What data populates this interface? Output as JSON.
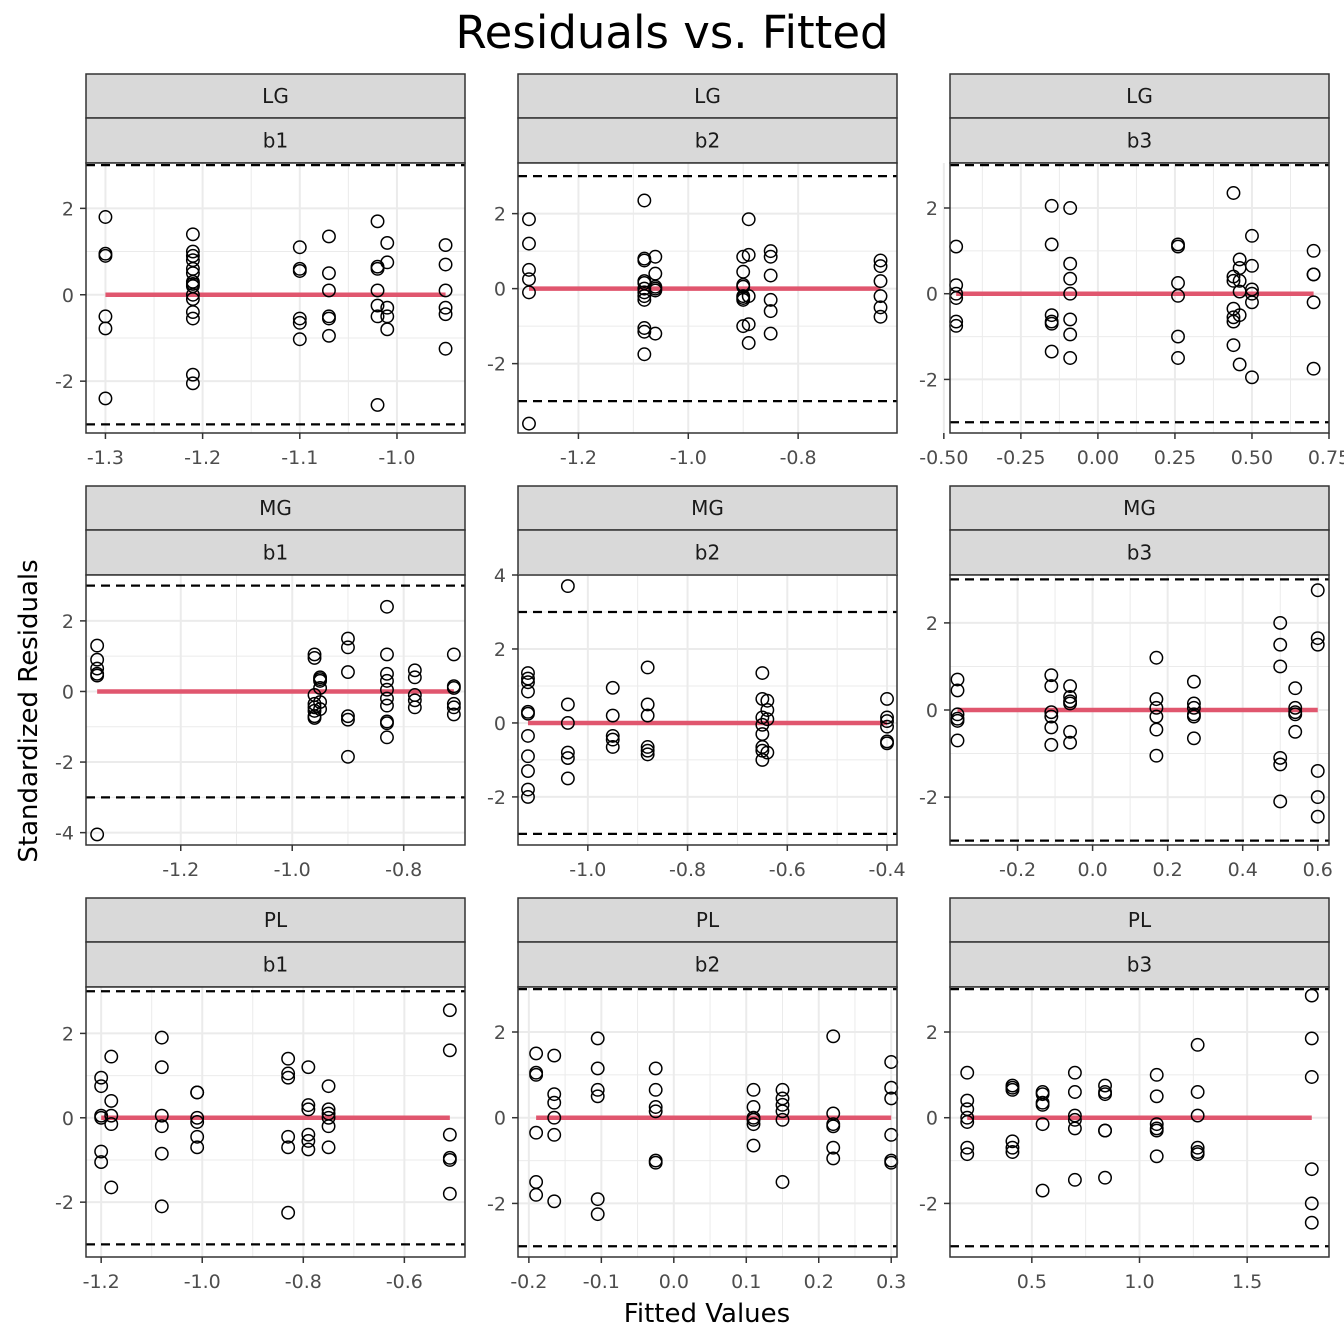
{
  "title": "Residuals vs. Fitted",
  "xlabel": "Fitted Values",
  "ylabel": "Standardized Residuals",
  "colors": {
    "fit_line": "#E0566E",
    "strip_bg": "#D9D9D9",
    "grid": "#EBEBEB",
    "reference": "#000000"
  },
  "chart_data": [
    {
      "type": "scatter",
      "row_label": "LG",
      "col_label": "b1",
      "xlim": [
        -1.32,
        -0.93
      ],
      "ylim": [
        -3.2,
        3.05
      ],
      "xticks": [
        -1.3,
        -1.2,
        -1.1,
        -1.0
      ],
      "xtick_labels": [
        "-1.3",
        "-1.2",
        "-1.1",
        "-1.0"
      ],
      "yticks": [
        -2,
        0,
        2
      ],
      "ytick_labels": [
        "-2",
        "0",
        "2"
      ],
      "ref_lines": [
        3,
        -3
      ],
      "fit_line": {
        "x": [
          -1.3,
          -0.95
        ],
        "y": [
          0,
          0
        ]
      },
      "x": [
        -1.3,
        -1.3,
        -1.3,
        -1.3,
        -1.3,
        -1.3,
        -1.21,
        -1.21,
        -1.21,
        -1.21,
        -1.21,
        -1.21,
        -1.21,
        -1.21,
        -1.21,
        -1.21,
        -1.21,
        -1.21,
        -1.21,
        -1.21,
        -1.21,
        -1.1,
        -1.1,
        -1.1,
        -1.1,
        -1.1,
        -1.1,
        -1.07,
        -1.07,
        -1.07,
        -1.07,
        -1.07,
        -1.07,
        -1.02,
        -1.02,
        -1.02,
        -1.02,
        -1.02,
        -1.02,
        -1.02,
        -1.01,
        -1.01,
        -1.01,
        -1.01,
        -1.01,
        -0.95,
        -0.95,
        -0.95,
        -0.95,
        -0.95,
        -0.95
      ],
      "y": [
        1.8,
        0.95,
        0.9,
        -0.5,
        -0.78,
        -2.4,
        1.4,
        1.0,
        0.9,
        0.6,
        0.5,
        0.25,
        0.2,
        0.0,
        -0.1,
        -0.4,
        -0.55,
        -1.85,
        -2.05,
        0.8,
        0.3,
        1.1,
        0.6,
        0.55,
        -0.55,
        -0.65,
        -1.03,
        1.35,
        0.5,
        0.1,
        -0.5,
        -0.55,
        -0.95,
        1.7,
        0.65,
        0.6,
        0.1,
        -0.5,
        -0.25,
        -2.55,
        1.2,
        0.75,
        -0.3,
        -0.5,
        -0.8,
        1.15,
        0.7,
        0.1,
        -0.3,
        -0.45,
        -1.25
      ]
    },
    {
      "type": "scatter",
      "row_label": "LG",
      "col_label": "b2",
      "xlim": [
        -1.31,
        -0.62
      ],
      "ylim": [
        -3.85,
        3.35
      ],
      "xticks": [
        -1.2,
        -1.0,
        -0.8
      ],
      "xtick_labels": [
        "-1.2",
        "-1.0",
        "-0.8"
      ],
      "yticks": [
        -2,
        0,
        2
      ],
      "ytick_labels": [
        "-2",
        "0",
        "2"
      ],
      "ref_lines": [
        3,
        -3
      ],
      "fit_line": {
        "x": [
          -1.29,
          -0.65
        ],
        "y": [
          0,
          0
        ]
      },
      "x": [
        -1.29,
        -1.29,
        -1.29,
        -1.29,
        -1.29,
        -1.29,
        -1.08,
        -1.08,
        -1.08,
        -1.08,
        -1.08,
        -1.08,
        -1.08,
        -1.08,
        -1.08,
        -1.08,
        -1.08,
        -1.08,
        -1.06,
        -1.06,
        -1.06,
        -1.06,
        -1.06,
        -1.06,
        -0.9,
        -0.9,
        -0.9,
        -0.9,
        -0.9,
        -0.9,
        -0.9,
        -0.9,
        -0.89,
        -0.89,
        -0.89,
        -0.89,
        -0.89,
        -0.85,
        -0.85,
        -0.85,
        -0.85,
        -0.85,
        -0.85,
        -0.65,
        -0.65,
        -0.65,
        -0.65,
        -0.65,
        -0.65
      ],
      "y": [
        1.85,
        1.2,
        0.5,
        0.25,
        -0.1,
        -3.6,
        2.35,
        0.8,
        0.75,
        0.2,
        0.15,
        0.0,
        -0.1,
        -0.2,
        -0.3,
        -1.05,
        -1.15,
        -1.75,
        0.85,
        0.4,
        0.05,
        0.0,
        -0.05,
        -1.2,
        0.85,
        0.45,
        0.1,
        -0.2,
        -0.25,
        -0.3,
        -1.0,
        0.05,
        1.85,
        0.9,
        -0.2,
        -0.95,
        -1.45,
        1.0,
        0.85,
        0.35,
        -0.3,
        -0.6,
        -1.2,
        0.75,
        0.6,
        0.2,
        -0.2,
        -0.5,
        -0.75
      ]
    },
    {
      "type": "scatter",
      "row_label": "LG",
      "col_label": "b3",
      "xlim": [
        -0.48,
        0.75
      ],
      "ylim": [
        -3.25,
        3.05
      ],
      "xticks": [
        -0.5,
        -0.25,
        0.0,
        0.25,
        0.5,
        0.75
      ],
      "xtick_labels": [
        "-0.50",
        "-0.25",
        "0.00",
        "0.25",
        "0.50",
        "0.75"
      ],
      "yticks": [
        -2,
        0,
        2
      ],
      "ytick_labels": [
        "-2",
        "0",
        "2"
      ],
      "ref_lines": [
        3,
        -3
      ],
      "fit_line": {
        "x": [
          -0.46,
          0.7
        ],
        "y": [
          0,
          0
        ]
      },
      "x": [
        -0.46,
        -0.46,
        -0.46,
        -0.46,
        -0.46,
        -0.46,
        -0.15,
        -0.15,
        -0.15,
        -0.15,
        -0.15,
        -0.15,
        -0.09,
        -0.09,
        -0.09,
        -0.09,
        -0.09,
        -0.09,
        -0.09,
        0.26,
        0.26,
        0.26,
        0.26,
        0.26,
        0.26,
        0.44,
        0.44,
        0.44,
        0.44,
        0.44,
        0.44,
        0.44,
        0.46,
        0.46,
        0.46,
        0.46,
        0.46,
        0.46,
        0.5,
        0.5,
        0.5,
        0.5,
        0.5,
        0.5,
        0.7,
        0.7,
        0.7,
        0.7,
        0.7
      ],
      "y": [
        1.1,
        0.2,
        0.0,
        -0.1,
        -0.65,
        -0.75,
        2.05,
        1.15,
        -0.5,
        -0.65,
        -0.7,
        -1.35,
        2.0,
        0.7,
        0.35,
        -0.6,
        -0.95,
        -1.5,
        0.0,
        1.15,
        1.1,
        0.25,
        -0.05,
        -1.0,
        -1.5,
        2.35,
        0.4,
        0.3,
        -0.35,
        -0.65,
        -0.55,
        -1.2,
        0.8,
        0.6,
        0.3,
        -0.5,
        -1.65,
        0.05,
        1.35,
        0.65,
        0.1,
        0.0,
        -0.2,
        -1.95,
        1.0,
        0.45,
        0.45,
        -0.2,
        -1.75
      ]
    },
    {
      "type": "scatter",
      "row_label": "MG",
      "col_label": "b1",
      "xlim": [
        -1.37,
        -0.69
      ],
      "ylim": [
        -4.35,
        3.3
      ],
      "xticks": [
        -1.2,
        -1.0,
        -0.8
      ],
      "xtick_labels": [
        "-1.2",
        "-1.0",
        "-0.8"
      ],
      "yticks": [
        -4,
        -2,
        0,
        2
      ],
      "ytick_labels": [
        "-4",
        "-2",
        "0",
        "2"
      ],
      "ref_lines": [
        3,
        -3
      ],
      "fit_line": {
        "x": [
          -1.35,
          -0.71
        ],
        "y": [
          0,
          0
        ]
      },
      "x": [
        -1.35,
        -1.35,
        -1.35,
        -1.35,
        -1.35,
        -1.35,
        -0.96,
        -0.96,
        -0.96,
        -0.96,
        -0.96,
        -0.96,
        -0.96,
        -0.96,
        -0.95,
        -0.95,
        -0.95,
        -0.95,
        -0.95,
        -0.95,
        -0.9,
        -0.9,
        -0.9,
        -0.9,
        -0.9,
        -0.9,
        -0.83,
        -0.83,
        -0.83,
        -0.83,
        -0.83,
        -0.83,
        -0.83,
        -0.83,
        -0.83,
        -0.83,
        -0.78,
        -0.78,
        -0.78,
        -0.78,
        -0.78,
        -0.71,
        -0.71,
        -0.71,
        -0.71,
        -0.71,
        -0.71
      ],
      "y": [
        1.3,
        0.9,
        0.65,
        0.5,
        0.45,
        -4.05,
        1.05,
        0.95,
        -0.1,
        -0.35,
        -0.45,
        -0.55,
        -0.7,
        -0.75,
        0.4,
        0.35,
        0.3,
        0.1,
        -0.3,
        -0.5,
        1.5,
        1.25,
        0.55,
        -0.7,
        -0.8,
        -1.85,
        2.4,
        1.05,
        0.5,
        0.3,
        0.05,
        -0.2,
        -0.4,
        -0.85,
        -0.9,
        -1.3,
        0.6,
        0.4,
        -0.1,
        -0.25,
        -0.45,
        1.05,
        0.15,
        0.1,
        -0.35,
        -0.45,
        -0.65
      ]
    },
    {
      "type": "scatter",
      "row_label": "MG",
      "col_label": "b2",
      "xlim": [
        -1.14,
        -0.38
      ],
      "ylim": [
        -3.3,
        4.0
      ],
      "xticks": [
        -1.0,
        -0.8,
        -0.6,
        -0.4
      ],
      "xtick_labels": [
        "-1.0",
        "-0.8",
        "-0.6",
        "-0.4"
      ],
      "yticks": [
        -2,
        0,
        2,
        4
      ],
      "ytick_labels": [
        "-2",
        "0",
        "2",
        "4"
      ],
      "ref_lines": [
        3,
        -3
      ],
      "fit_line": {
        "x": [
          -1.12,
          -0.4
        ],
        "y": [
          0,
          0
        ]
      },
      "x": [
        -1.12,
        -1.12,
        -1.12,
        -1.12,
        -1.12,
        -1.12,
        -1.12,
        -1.12,
        -1.12,
        -1.12,
        -1.12,
        -1.04,
        -1.04,
        -1.04,
        -1.04,
        -1.04,
        -1.04,
        -0.95,
        -0.95,
        -0.95,
        -0.95,
        -0.95,
        -0.88,
        -0.88,
        -0.88,
        -0.88,
        -0.88,
        -0.88,
        -0.65,
        -0.65,
        -0.65,
        -0.65,
        -0.65,
        -0.65,
        -0.65,
        -0.65,
        -0.64,
        -0.64,
        -0.64,
        -0.64,
        -0.4,
        -0.4,
        -0.4,
        -0.4,
        -0.4,
        -0.4
      ],
      "y": [
        1.35,
        1.2,
        1.1,
        0.85,
        0.3,
        0.25,
        -0.35,
        -0.9,
        -1.3,
        -1.8,
        -2.0,
        3.7,
        0.5,
        -0.8,
        -0.95,
        -1.5,
        0.0,
        0.95,
        0.2,
        -0.35,
        -0.45,
        -0.65,
        1.5,
        0.5,
        0.2,
        -0.65,
        -0.75,
        -0.85,
        1.35,
        0.65,
        0.15,
        -0.05,
        -0.3,
        -0.65,
        -0.75,
        -1.0,
        0.6,
        0.35,
        0.1,
        -0.8,
        0.65,
        0.15,
        0.05,
        -0.1,
        -0.5,
        -0.55
      ]
    },
    {
      "type": "scatter",
      "row_label": "MG",
      "col_label": "b3",
      "xlim": [
        -0.38,
        0.63
      ],
      "ylim": [
        -3.1,
        3.1
      ],
      "xticks": [
        -0.2,
        0.0,
        0.2,
        0.4,
        0.6
      ],
      "xtick_labels": [
        "-0.2",
        "0.0",
        "0.2",
        "0.4",
        "0.6"
      ],
      "yticks": [
        -2,
        0,
        2
      ],
      "ytick_labels": [
        "-2",
        "0",
        "2"
      ],
      "ref_lines": [
        3,
        -3
      ],
      "fit_line": {
        "x": [
          -0.36,
          0.6
        ],
        "y": [
          0,
          0
        ]
      },
      "x": [
        -0.36,
        -0.36,
        -0.36,
        -0.36,
        -0.36,
        -0.36,
        -0.11,
        -0.11,
        -0.11,
        -0.11,
        -0.11,
        -0.11,
        -0.06,
        -0.06,
        -0.06,
        -0.06,
        -0.06,
        -0.06,
        0.17,
        0.17,
        0.17,
        0.17,
        0.17,
        0.17,
        0.27,
        0.27,
        0.27,
        0.27,
        0.27,
        0.27,
        0.5,
        0.5,
        0.5,
        0.5,
        0.5,
        0.5,
        0.54,
        0.54,
        0.54,
        0.54,
        0.54,
        0.6,
        0.6,
        0.6,
        0.6,
        0.6,
        0.6
      ],
      "y": [
        0.7,
        0.45,
        -0.1,
        -0.2,
        -0.25,
        -0.7,
        0.8,
        0.55,
        -0.05,
        -0.15,
        -0.4,
        -0.8,
        0.55,
        0.3,
        0.2,
        0.15,
        -0.5,
        -0.75,
        1.2,
        0.25,
        0.05,
        -0.15,
        -0.45,
        -1.05,
        0.65,
        0.15,
        0.05,
        -0.1,
        -0.15,
        -0.65,
        2.0,
        1.5,
        1.0,
        -1.1,
        -1.25,
        -2.1,
        0.5,
        0.05,
        -0.05,
        -0.1,
        -0.5,
        2.75,
        1.65,
        1.5,
        -1.4,
        -2.0,
        -2.45
      ]
    },
    {
      "type": "scatter",
      "row_label": "PL",
      "col_label": "b1",
      "xlim": [
        -1.23,
        -0.48
      ],
      "ylim": [
        -3.3,
        3.1
      ],
      "xticks": [
        -1.2,
        -1.0,
        -0.8,
        -0.6
      ],
      "xtick_labels": [
        "-1.2",
        "-1.0",
        "-0.8",
        "-0.6"
      ],
      "yticks": [
        -2,
        0,
        2
      ],
      "ytick_labels": [
        "-2",
        "0",
        "2"
      ],
      "ref_lines": [
        3,
        -3
      ],
      "fit_line": {
        "x": [
          -1.2,
          -0.51
        ],
        "y": [
          0,
          0
        ]
      },
      "x": [
        -1.2,
        -1.2,
        -1.2,
        -1.2,
        -1.2,
        -1.2,
        -1.18,
        -1.18,
        -1.18,
        -1.18,
        -1.18,
        -1.08,
        -1.08,
        -1.08,
        -1.08,
        -1.08,
        -1.08,
        -1.01,
        -1.01,
        -1.01,
        -1.01,
        -1.01,
        -1.01,
        -0.83,
        -0.83,
        -0.83,
        -0.83,
        -0.83,
        -0.83,
        -0.79,
        -0.79,
        -0.79,
        -0.79,
        -0.79,
        -0.79,
        -0.75,
        -0.75,
        -0.75,
        -0.75,
        -0.75,
        -0.75,
        -0.51,
        -0.51,
        -0.51,
        -0.51,
        -0.51,
        -0.51
      ],
      "y": [
        0.95,
        0.75,
        0.05,
        0.0,
        -0.8,
        -1.05,
        1.45,
        0.4,
        0.05,
        -0.15,
        -1.65,
        1.9,
        1.2,
        0.05,
        -0.2,
        -0.85,
        -2.1,
        0.6,
        0.6,
        0.0,
        -0.1,
        -0.45,
        -0.7,
        1.4,
        1.05,
        0.95,
        -0.45,
        -0.7,
        -2.25,
        1.2,
        0.3,
        0.2,
        -0.4,
        -0.55,
        -0.75,
        0.75,
        0.2,
        0.1,
        0.0,
        -0.2,
        -0.7,
        2.55,
        1.6,
        -0.4,
        -0.95,
        -1.0,
        -1.8
      ]
    },
    {
      "type": "scatter",
      "row_label": "PL",
      "col_label": "b2",
      "xlim": [
        -0.215,
        0.308
      ],
      "ylim": [
        -3.25,
        3.05
      ],
      "xticks": [
        -0.2,
        -0.1,
        0.0,
        0.1,
        0.2,
        0.3
      ],
      "xtick_labels": [
        "-0.2",
        "-0.1",
        "0.0",
        "0.1",
        "0.2",
        "0.3"
      ],
      "yticks": [
        -2,
        0,
        2
      ],
      "ytick_labels": [
        "-2",
        "0",
        "2"
      ],
      "ref_lines": [
        3,
        -3
      ],
      "fit_line": {
        "x": [
          -0.19,
          0.3
        ],
        "y": [
          0,
          0
        ]
      },
      "x": [
        -0.19,
        -0.19,
        -0.19,
        -0.19,
        -0.19,
        -0.19,
        -0.165,
        -0.165,
        -0.165,
        -0.165,
        -0.165,
        -0.165,
        -0.105,
        -0.105,
        -0.105,
        -0.105,
        -0.105,
        -0.105,
        -0.025,
        -0.025,
        -0.025,
        -0.025,
        -0.025,
        -0.025,
        0.11,
        0.11,
        0.11,
        0.11,
        0.11,
        0.11,
        0.15,
        0.15,
        0.15,
        0.15,
        0.15,
        0.15,
        0.22,
        0.22,
        0.22,
        0.22,
        0.22,
        0.22,
        0.3,
        0.3,
        0.3,
        0.3,
        0.3,
        0.3
      ],
      "y": [
        1.5,
        1.05,
        1.0,
        -0.35,
        -1.5,
        -1.8,
        1.45,
        0.55,
        0.35,
        -0.4,
        -1.95,
        0.0,
        1.85,
        1.15,
        0.65,
        0.5,
        -1.9,
        -2.25,
        1.15,
        0.65,
        0.25,
        0.15,
        -1.0,
        -1.05,
        0.65,
        0.25,
        -0.05,
        -0.15,
        -0.65,
        0.0,
        0.65,
        0.45,
        0.3,
        0.15,
        -0.05,
        -1.5,
        1.9,
        0.1,
        -0.15,
        -0.2,
        -0.7,
        -0.95,
        1.3,
        0.7,
        0.45,
        -0.4,
        -1.0,
        -1.05
      ]
    },
    {
      "type": "scatter",
      "row_label": "PL",
      "col_label": "b3",
      "xlim": [
        0.12,
        1.88
      ],
      "ylim": [
        -3.25,
        3.05
      ],
      "xticks": [
        0.5,
        1.0,
        1.5
      ],
      "xtick_labels": [
        "0.5",
        "1.0",
        "1.5"
      ],
      "yticks": [
        -2,
        0,
        2
      ],
      "ytick_labels": [
        "-2",
        "0",
        "2"
      ],
      "ref_lines": [
        3,
        -3
      ],
      "fit_line": {
        "x": [
          0.2,
          1.8
        ],
        "y": [
          0,
          0
        ]
      },
      "x": [
        0.2,
        0.2,
        0.2,
        0.2,
        0.2,
        0.2,
        0.2,
        0.41,
        0.41,
        0.41,
        0.41,
        0.41,
        0.41,
        0.55,
        0.55,
        0.55,
        0.55,
        0.55,
        0.55,
        0.7,
        0.7,
        0.7,
        0.7,
        0.7,
        0.7,
        0.84,
        0.84,
        0.84,
        0.84,
        0.84,
        0.84,
        1.08,
        1.08,
        1.08,
        1.08,
        1.08,
        1.08,
        1.27,
        1.27,
        1.27,
        1.27,
        1.27,
        1.27,
        1.8,
        1.8,
        1.8,
        1.8,
        1.8,
        1.8
      ],
      "y": [
        1.05,
        0.4,
        0.2,
        -0.1,
        -0.7,
        -0.85,
        0.0,
        0.75,
        0.7,
        0.65,
        -0.55,
        -0.7,
        -0.8,
        0.6,
        0.55,
        0.35,
        0.3,
        -0.15,
        -1.7,
        1.05,
        0.6,
        0.05,
        -0.05,
        -0.25,
        -1.45,
        0.75,
        0.6,
        0.55,
        -0.3,
        -0.3,
        -1.4,
        1.0,
        0.5,
        -0.15,
        -0.25,
        -0.3,
        -0.9,
        1.7,
        0.6,
        0.05,
        -0.7,
        -0.8,
        -0.85,
        2.85,
        1.85,
        0.95,
        -1.2,
        -2.0,
        -2.45
      ]
    }
  ]
}
